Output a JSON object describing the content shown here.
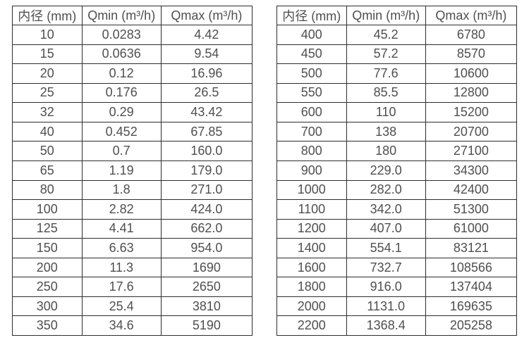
{
  "chart_data": [
    {
      "type": "table",
      "name": "small-diameter-flow-table",
      "columns": [
        "内径 (mm)",
        "Qmin (m³/h)",
        "Qmax (m³/h)"
      ],
      "rows": [
        [
          "10",
          "0.0283",
          "4.42"
        ],
        [
          "15",
          "0.0636",
          "9.54"
        ],
        [
          "20",
          "0.12",
          "16.96"
        ],
        [
          "25",
          "0.176",
          "26.5"
        ],
        [
          "32",
          "0.29",
          "43.42"
        ],
        [
          "40",
          "0.452",
          "67.85"
        ],
        [
          "50",
          "0.7",
          "160.0"
        ],
        [
          "65",
          "1.19",
          "179.0"
        ],
        [
          "80",
          "1.8",
          "271.0"
        ],
        [
          "100",
          "2.82",
          "424.0"
        ],
        [
          "125",
          "4.41",
          "662.0"
        ],
        [
          "150",
          "6.63",
          "954.0"
        ],
        [
          "200",
          "11.3",
          "1690"
        ],
        [
          "250",
          "17.6",
          "2650"
        ],
        [
          "300",
          "25.4",
          "3810"
        ],
        [
          "350",
          "34.6",
          "5190"
        ]
      ]
    },
    {
      "type": "table",
      "name": "large-diameter-flow-table",
      "columns": [
        "内径 (mm)",
        "Qmin (m³/h)",
        "Qmax (m³/h)"
      ],
      "rows": [
        [
          "400",
          "45.2",
          "6780"
        ],
        [
          "450",
          "57.2",
          "8570"
        ],
        [
          "500",
          "77.6",
          "10600"
        ],
        [
          "550",
          "85.5",
          "12800"
        ],
        [
          "600",
          "110",
          "15200"
        ],
        [
          "700",
          "138",
          "20700"
        ],
        [
          "800",
          "180",
          "27100"
        ],
        [
          "900",
          "229.0",
          "34300"
        ],
        [
          "1000",
          "282.0",
          "42400"
        ],
        [
          "1100",
          "342.0",
          "51300"
        ],
        [
          "1200",
          "407.0",
          "61000"
        ],
        [
          "1400",
          "554.1",
          "83121"
        ],
        [
          "1600",
          "732.7",
          "108566"
        ],
        [
          "1800",
          "916.0",
          "137404"
        ],
        [
          "2000",
          "1131.0",
          "169635"
        ],
        [
          "2200",
          "1368.4",
          "205258"
        ]
      ]
    }
  ],
  "colors": {
    "background": "#ffffff",
    "border": "#2d2d2d",
    "text": "#4f4f4f"
  }
}
